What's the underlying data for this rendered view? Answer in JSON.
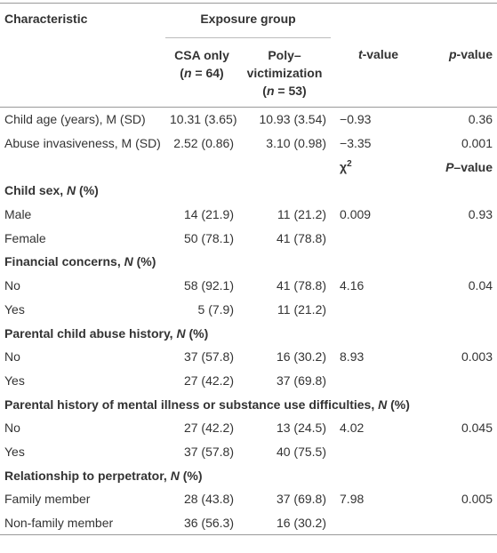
{
  "header": {
    "characteristic": "Characteristic",
    "exposure_group": "Exposure group",
    "csa_only": [
      "CSA only",
      "(",
      "n",
      " = 64)"
    ],
    "poly": [
      "Poly–",
      "victimization",
      "(",
      "n",
      " = 53)"
    ],
    "t_value": [
      "t",
      "-value"
    ],
    "p_value": [
      "p",
      "-value"
    ]
  },
  "continuous_rows": [
    [
      "Child age (years), M (SD)",
      "10.31 (3.65)",
      "10.93 (3.54)",
      "−0.93",
      "0.36"
    ],
    [
      "Abuse invasiveness, M (SD)",
      "2.52 (0.86)",
      "3.10 (0.98)",
      "−3.35",
      "0.001"
    ]
  ],
  "subheader": {
    "chi": [
      "χ",
      "2"
    ],
    "p_value": [
      "P",
      "–value"
    ]
  },
  "sections": [
    {
      "title": [
        "Child sex, ",
        "N",
        " (%)"
      ],
      "rows": [
        [
          "Male",
          "14 (21.9)",
          "11 (21.2)",
          "0.009",
          "0.93"
        ],
        [
          "Female",
          "50 (78.1)",
          "41 (78.8)"
        ]
      ]
    },
    {
      "title": [
        "Financial concerns, ",
        "N",
        " (%)"
      ],
      "rows": [
        [
          "No",
          "58 (92.1)",
          "41 (78.8)",
          "4.16",
          "0.04"
        ],
        [
          "Yes",
          "5 (7.9)",
          "11 (21.2)"
        ]
      ]
    },
    {
      "title": [
        "Parental child abuse history, ",
        "N",
        " (%)"
      ],
      "rows": [
        [
          "No",
          "37 (57.8)",
          "16 (30.2)",
          "8.93",
          "0.003"
        ],
        [
          "Yes",
          "27 (42.2)",
          "37 (69.8)"
        ]
      ]
    },
    {
      "title": [
        "Parental history of mental illness or substance use difficulties, ",
        "N",
        " (%)"
      ],
      "rows": [
        [
          "No",
          "27 (42.2)",
          "13 (24.5)",
          "4.02",
          "0.045"
        ],
        [
          "Yes",
          "37 (57.8)",
          "40 (75.5)"
        ]
      ]
    },
    {
      "title": [
        "Relationship to perpetrator, ",
        "N",
        " (%)"
      ],
      "rows": [
        [
          "Family member",
          "28 (43.8)",
          "37 (69.8)",
          "7.98",
          "0.005"
        ],
        [
          "Non-family member",
          "36 (56.3)",
          "16 (30.2)"
        ]
      ]
    }
  ]
}
